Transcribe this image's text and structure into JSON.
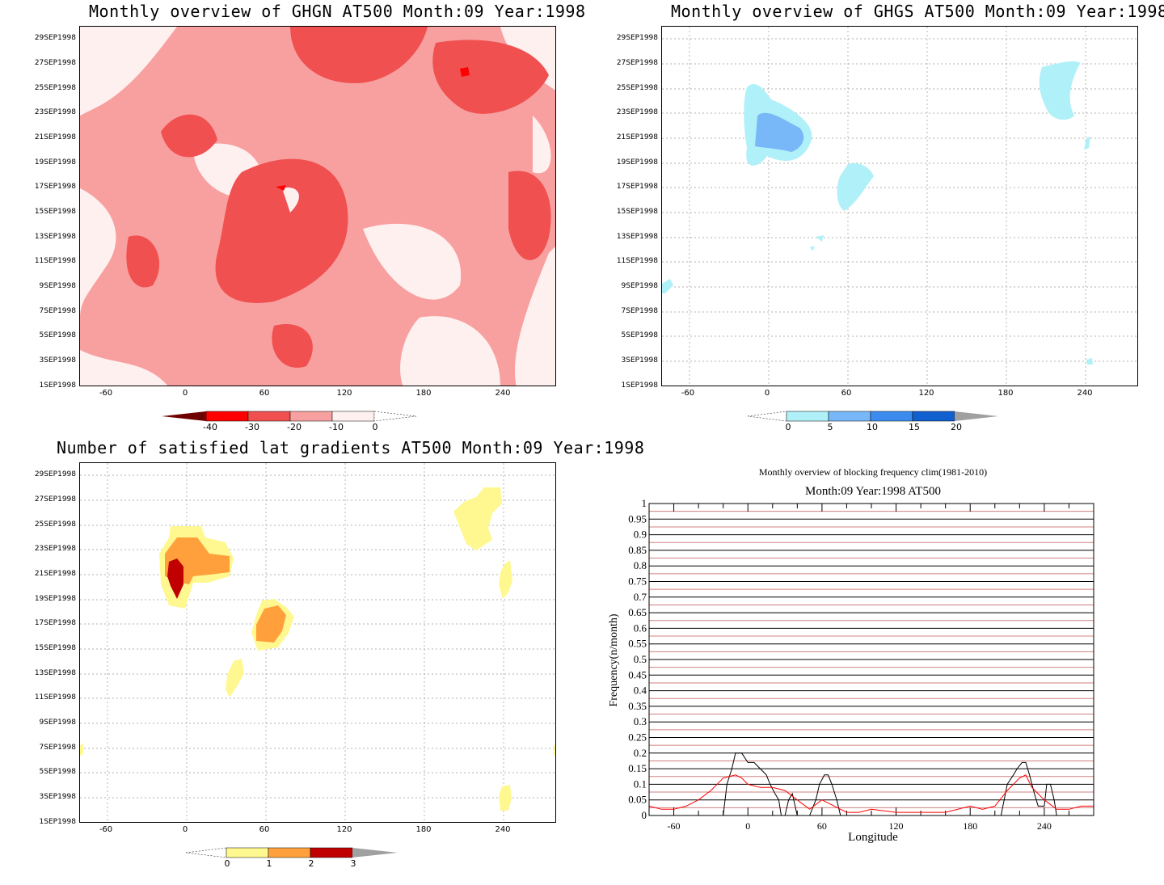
{
  "panels": [
    {
      "id": "ghgn",
      "title": "Monthly overview of GHGN AT500 Month:09 Year:1998",
      "y_ticks": [
        "29SEP1998",
        "27SEP1998",
        "25SEP1998",
        "23SEP1998",
        "21SEP1998",
        "19SEP1998",
        "17SEP1998",
        "15SEP1998",
        "13SEP1998",
        "11SEP1998",
        "9SEP1998",
        "7SEP1998",
        "5SEP1998",
        "3SEP1998",
        "1SEP1998"
      ],
      "x_ticks": [
        "-60",
        "0",
        "60",
        "120",
        "180",
        "240"
      ],
      "colorbar": {
        "labels": [
          "-40",
          "-30",
          "-20",
          "-10",
          "0"
        ],
        "colors": [
          "#6e0000",
          "#ff0000",
          "#f05050",
          "#f8a0a0",
          "#fff0f0"
        ]
      }
    },
    {
      "id": "ghgs",
      "title": "Monthly overview of GHGS AT500 Month:09 Year:1998",
      "y_ticks": [
        "29SEP1998",
        "27SEP1998",
        "25SEP1998",
        "23SEP1998",
        "21SEP1998",
        "19SEP1998",
        "17SEP1998",
        "15SEP1998",
        "13SEP1998",
        "11SEP1998",
        "9SEP1998",
        "7SEP1998",
        "5SEP1998",
        "3SEP1998",
        "1SEP1998"
      ],
      "x_ticks": [
        "-60",
        "0",
        "60",
        "120",
        "180",
        "240"
      ],
      "colorbar": {
        "labels": [
          "0",
          "5",
          "10",
          "15",
          "20"
        ],
        "colors": [
          "#b0f0f8",
          "#78b8f8",
          "#3c8cf0",
          "#1060d0",
          "#a0a0a0"
        ]
      }
    },
    {
      "id": "latgrad",
      "title": "Number of satisfied lat gradients AT500 Month:09 Year:1998",
      "y_ticks": [
        "29SEP1998",
        "27SEP1998",
        "25SEP1998",
        "23SEP1998",
        "21SEP1998",
        "19SEP1998",
        "17SEP1998",
        "15SEP1998",
        "13SEP1998",
        "11SEP1998",
        "9SEP1998",
        "7SEP1998",
        "5SEP1998",
        "3SEP1998",
        "1SEP1998"
      ],
      "x_ticks": [
        "-60",
        "0",
        "60",
        "120",
        "180",
        "240"
      ],
      "colorbar": {
        "labels": [
          "0",
          "1",
          "2",
          "3"
        ],
        "colors": [
          "#fff890",
          "#ffa03c",
          "#c00000",
          "#a0a0a0"
        ]
      }
    }
  ],
  "line_chart": {
    "title": "Monthly overview of blocking frequency clim(1981-2010)",
    "subtitle": "Month:09 Year:1998  AT500",
    "xlabel": "Longitude",
    "ylabel": "Frequency(n/month)",
    "x_ticks": [
      "-60",
      "0",
      "60",
      "120",
      "180",
      "240"
    ],
    "y_ticks": [
      "0",
      "0.05",
      "0.1",
      "0.15",
      "0.2",
      "0.25",
      "0.3",
      "0.35",
      "0.4",
      "0.45",
      "0.5",
      "0.55",
      "0.6",
      "0.65",
      "0.7",
      "0.75",
      "0.8",
      "0.85",
      "0.9",
      "0.95",
      "1"
    ]
  },
  "chart_data": [
    {
      "type": "heatmap",
      "title": "Monthly overview of GHGN AT500 Month:09 Year:1998",
      "x_range": [
        -80,
        300
      ],
      "y_range": [
        "1SEP1998",
        "30SEP1998"
      ],
      "levels": [
        -40,
        -30,
        -20,
        -10,
        0
      ],
      "colors": [
        "#6e0000",
        "#ff0000",
        "#f05050",
        "#f8a0a0",
        "#fff0f0"
      ]
    },
    {
      "type": "heatmap",
      "title": "Monthly overview of GHGS AT500 Month:09 Year:1998",
      "x_range": [
        -80,
        300
      ],
      "y_range": [
        "1SEP1998",
        "30SEP1998"
      ],
      "levels": [
        0,
        5,
        10,
        15,
        20
      ],
      "colors": [
        "#b0f0f8",
        "#78b8f8",
        "#3c8cf0",
        "#1060d0",
        "#a0a0a0"
      ]
    },
    {
      "type": "heatmap",
      "title": "Number of satisfied lat gradients AT500 Month:09 Year:1998",
      "x_range": [
        -80,
        300
      ],
      "y_range": [
        "1SEP1998",
        "30SEP1998"
      ],
      "levels": [
        0,
        1,
        2,
        3
      ],
      "colors": [
        "#fff890",
        "#ffa03c",
        "#c00000",
        "#a0a0a0"
      ]
    },
    {
      "type": "line",
      "title": "Monthly overview of blocking frequency clim(1981-2010)",
      "subtitle": "Month:09 Year:1998  AT500",
      "xlabel": "Longitude",
      "ylabel": "Frequency(n/month)",
      "xlim": [
        -80,
        280
      ],
      "ylim": [
        0,
        1
      ],
      "series": [
        {
          "color": "#000000",
          "x": [
            -80,
            -20,
            -17,
            -13,
            -10,
            -5,
            0,
            5,
            10,
            15,
            18,
            22,
            25,
            27,
            30,
            33,
            36,
            40,
            45,
            50,
            55,
            58,
            62,
            65,
            68,
            72,
            75,
            78,
            200,
            205,
            210,
            215,
            218,
            222,
            225,
            228,
            230,
            232,
            235,
            238,
            240,
            242,
            245,
            248,
            250,
            280
          ],
          "y": [
            0,
            0,
            0.1,
            0.15,
            0.2,
            0.2,
            0.17,
            0.17,
            0.15,
            0.13,
            0.1,
            0.07,
            0.05,
            0,
            0,
            0.05,
            0.07,
            0,
            0,
            0,
            0.05,
            0.1,
            0.13,
            0.13,
            0.1,
            0.05,
            0,
            0,
            0,
            0,
            0.1,
            0.13,
            0.15,
            0.17,
            0.17,
            0.13,
            0.1,
            0.07,
            0.03,
            0.03,
            0.03,
            0.1,
            0.1,
            0.05,
            0,
            0
          ]
        },
        {
          "color": "#ff0000",
          "x": [
            -80,
            -70,
            -60,
            -50,
            -40,
            -30,
            -20,
            -10,
            -5,
            0,
            10,
            20,
            30,
            40,
            50,
            60,
            70,
            80,
            90,
            100,
            120,
            140,
            160,
            180,
            190,
            200,
            210,
            220,
            225,
            230,
            240,
            250,
            260,
            270,
            280
          ],
          "y": [
            0.03,
            0.02,
            0.02,
            0.03,
            0.05,
            0.08,
            0.12,
            0.13,
            0.12,
            0.1,
            0.09,
            0.09,
            0.08,
            0.05,
            0.02,
            0.05,
            0.03,
            0.01,
            0.01,
            0.02,
            0.01,
            0.01,
            0.01,
            0.03,
            0.02,
            0.03,
            0.08,
            0.12,
            0.13,
            0.09,
            0.05,
            0.02,
            0.02,
            0.03,
            0.03
          ]
        }
      ]
    }
  ]
}
